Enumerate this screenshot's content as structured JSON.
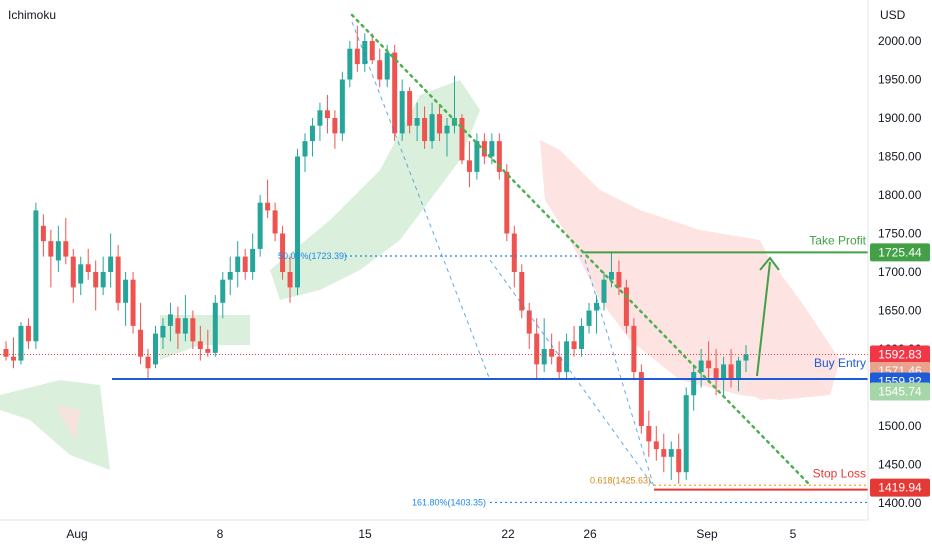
{
  "indicator_name": "Ichimoku",
  "currency": "USD",
  "colors": {
    "up": "#26a69a",
    "down": "#ef5350",
    "cloud_green": "#d6eed9",
    "cloud_red": "#fde0de",
    "take_profit": "#43a047",
    "buy_entry": "#1e5bd8",
    "stop_loss": "#e53935",
    "fib": "#1e88e5",
    "fib618": "#f5a623",
    "trendline": "#4caf50",
    "price_tag": "#f23645",
    "gray_tag": "#e9a48e",
    "low_tag": "#a5d6a7"
  },
  "chart_data": {
    "type": "candlestick",
    "ylim": [
      1380,
      2040
    ],
    "y_ticks": [
      "2000.00",
      "1950.00",
      "1900.00",
      "1850.00",
      "1800.00",
      "1750.00",
      "1700.00",
      "1650.00",
      "1600.00",
      "1500.00",
      "1450.00",
      "1400.00"
    ],
    "x_ticks": [
      "Aug",
      "8",
      "15",
      "22",
      "26",
      "Sep",
      "5"
    ],
    "levels": {
      "take_profit": {
        "label": "Take Profit",
        "value": 1725.44,
        "tag": "1725.44"
      },
      "buy_entry": {
        "label": "Buy Entry",
        "value": 1571.46,
        "tag": "1571.46"
      },
      "stop_loss": {
        "label": "Stop Loss",
        "value": 1419.94,
        "tag": "1419.94"
      }
    },
    "fib_labels": {
      "fib50": {
        "text": "50.00%(1723.39)",
        "value": 1723.39
      },
      "fib618": {
        "text": "0.618(1425.63)",
        "value": 1425.63
      },
      "fib1618": {
        "text": "161.80%(1403.35)",
        "value": 1403.35
      }
    },
    "price_tags": {
      "last": {
        "value": 1592.83,
        "text": "1592.83"
      },
      "blue": {
        "value": 1559.82,
        "text": "1559.82"
      },
      "green": {
        "value": 1545.74,
        "text": "1545.74"
      }
    },
    "candles": [
      [
        1600,
        1610,
        1585,
        1590
      ],
      [
        1590,
        1615,
        1575,
        1585
      ],
      [
        1585,
        1635,
        1580,
        1630
      ],
      [
        1630,
        1640,
        1600,
        1610
      ],
      [
        1610,
        1790,
        1600,
        1780
      ],
      [
        1760,
        1775,
        1720,
        1740
      ],
      [
        1740,
        1755,
        1680,
        1720
      ],
      [
        1715,
        1760,
        1700,
        1740
      ],
      [
        1740,
        1770,
        1710,
        1720
      ],
      [
        1720,
        1730,
        1660,
        1680
      ],
      [
        1685,
        1720,
        1670,
        1710
      ],
      [
        1710,
        1730,
        1690,
        1700
      ],
      [
        1700,
        1715,
        1650,
        1680
      ],
      [
        1680,
        1720,
        1670,
        1700
      ],
      [
        1700,
        1750,
        1680,
        1720
      ],
      [
        1720,
        1735,
        1650,
        1660
      ],
      [
        1660,
        1700,
        1630,
        1690
      ],
      [
        1690,
        1700,
        1620,
        1630
      ],
      [
        1625,
        1660,
        1580,
        1590
      ],
      [
        1590,
        1600,
        1560,
        1575
      ],
      [
        1580,
        1630,
        1575,
        1620
      ],
      [
        1615,
        1640,
        1600,
        1630
      ],
      [
        1630,
        1660,
        1610,
        1645
      ],
      [
        1640,
        1655,
        1600,
        1620
      ],
      [
        1620,
        1670,
        1610,
        1640
      ],
      [
        1640,
        1650,
        1600,
        1610
      ],
      [
        1610,
        1630,
        1585,
        1600
      ],
      [
        1600,
        1625,
        1590,
        1595
      ],
      [
        1595,
        1670,
        1590,
        1660
      ],
      [
        1660,
        1700,
        1640,
        1690
      ],
      [
        1690,
        1720,
        1670,
        1700
      ],
      [
        1700,
        1740,
        1680,
        1720
      ],
      [
        1720,
        1730,
        1690,
        1700
      ],
      [
        1700,
        1750,
        1690,
        1730
      ],
      [
        1730,
        1800,
        1720,
        1790
      ],
      [
        1790,
        1820,
        1770,
        1780
      ],
      [
        1780,
        1790,
        1740,
        1750
      ],
      [
        1750,
        1760,
        1690,
        1700
      ],
      [
        1700,
        1720,
        1660,
        1680
      ],
      [
        1680,
        1860,
        1670,
        1850
      ],
      [
        1850,
        1880,
        1830,
        1870
      ],
      [
        1870,
        1900,
        1850,
        1890
      ],
      [
        1890,
        1920,
        1870,
        1910
      ],
      [
        1910,
        1930,
        1880,
        1900
      ],
      [
        1900,
        1910,
        1860,
        1880
      ],
      [
        1880,
        1960,
        1870,
        1950
      ],
      [
        1950,
        2000,
        1940,
        1990
      ],
      [
        1990,
        2020,
        1960,
        1970
      ],
      [
        1970,
        2010,
        1960,
        2000
      ],
      [
        2000,
        2010,
        1970,
        1975
      ],
      [
        1975,
        1990,
        1940,
        1950
      ],
      [
        1950,
        1995,
        1940,
        1985
      ],
      [
        1985,
        1995,
        1870,
        1880
      ],
      [
        1880,
        1950,
        1870,
        1935
      ],
      [
        1935,
        1940,
        1880,
        1890
      ],
      [
        1890,
        1920,
        1870,
        1900
      ],
      [
        1900,
        1915,
        1860,
        1870
      ],
      [
        1870,
        1920,
        1860,
        1905
      ],
      [
        1905,
        1915,
        1870,
        1880
      ],
      [
        1880,
        1900,
        1850,
        1890
      ],
      [
        1890,
        1955,
        1880,
        1900
      ],
      [
        1900,
        1905,
        1840,
        1845
      ],
      [
        1845,
        1870,
        1810,
        1830
      ],
      [
        1830,
        1880,
        1820,
        1870
      ],
      [
        1870,
        1880,
        1840,
        1850
      ],
      [
        1850,
        1880,
        1840,
        1870
      ],
      [
        1870,
        1880,
        1820,
        1830
      ],
      [
        1830,
        1840,
        1740,
        1750
      ],
      [
        1750,
        1760,
        1680,
        1700
      ],
      [
        1700,
        1710,
        1640,
        1650
      ],
      [
        1650,
        1660,
        1600,
        1620
      ],
      [
        1620,
        1640,
        1560,
        1580
      ],
      [
        1580,
        1640,
        1570,
        1600
      ],
      [
        1600,
        1620,
        1580,
        1590
      ],
      [
        1590,
        1610,
        1560,
        1570
      ],
      [
        1570,
        1620,
        1560,
        1610
      ],
      [
        1610,
        1630,
        1590,
        1600
      ],
      [
        1600,
        1640,
        1590,
        1630
      ],
      [
        1630,
        1660,
        1620,
        1650
      ],
      [
        1650,
        1670,
        1620,
        1660
      ],
      [
        1660,
        1700,
        1650,
        1690
      ],
      [
        1690,
        1725,
        1680,
        1700
      ],
      [
        1700,
        1715,
        1670,
        1680
      ],
      [
        1680,
        1690,
        1620,
        1630
      ],
      [
        1630,
        1640,
        1560,
        1570
      ],
      [
        1570,
        1580,
        1490,
        1500
      ],
      [
        1500,
        1520,
        1460,
        1480
      ],
      [
        1480,
        1500,
        1455,
        1470
      ],
      [
        1470,
        1490,
        1440,
        1460
      ],
      [
        1460,
        1480,
        1430,
        1470
      ],
      [
        1470,
        1490,
        1425,
        1440
      ],
      [
        1440,
        1550,
        1430,
        1540
      ],
      [
        1540,
        1580,
        1520,
        1570
      ],
      [
        1570,
        1600,
        1550,
        1585
      ],
      [
        1585,
        1610,
        1560,
        1575
      ],
      [
        1575,
        1600,
        1540,
        1560
      ],
      [
        1560,
        1590,
        1540,
        1580
      ],
      [
        1580,
        1600,
        1550,
        1560
      ],
      [
        1560,
        1590,
        1545,
        1585
      ],
      [
        1585,
        1605,
        1570,
        1593
      ]
    ]
  }
}
